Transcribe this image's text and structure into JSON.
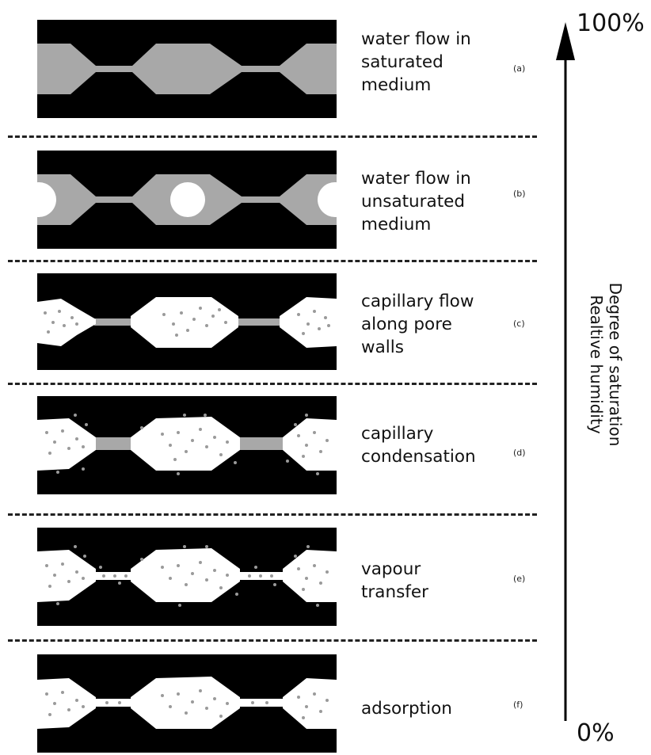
{
  "axis": {
    "top_label": "100%",
    "bottom_label": "0%",
    "title_line1": "Degree of saturation",
    "title_line2": "Realtive humidity"
  },
  "panels": [
    {
      "lines": [
        "water flow in",
        "saturated",
        "medium"
      ],
      "tag": "(a)"
    },
    {
      "lines": [
        "water flow in",
        "unsaturated",
        "medium"
      ],
      "tag": "(b)"
    },
    {
      "lines": [
        "capillary flow",
        "along pore",
        "walls"
      ],
      "tag": "(c)"
    },
    {
      "lines": [
        "capillary",
        "condensation"
      ],
      "tag": "(d)"
    },
    {
      "lines": [
        "vapour",
        "transfer"
      ],
      "tag": "(e)"
    },
    {
      "lines": [
        "adsorption"
      ],
      "tag": "(f)"
    }
  ],
  "colors": {
    "solid": "#000000",
    "water": "#a8a8a8",
    "air": "#ffffff",
    "text": "#111111"
  }
}
